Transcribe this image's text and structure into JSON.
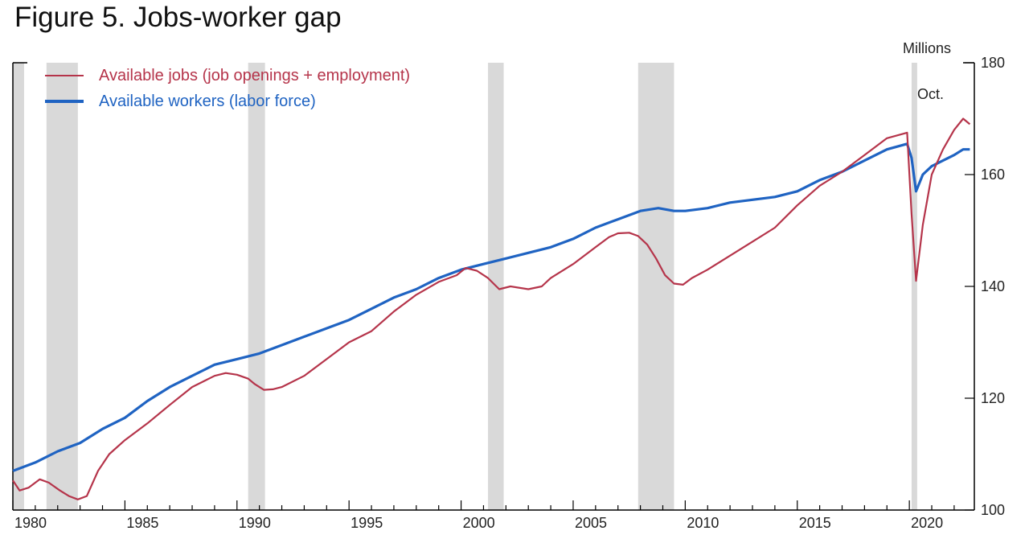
{
  "chart_data": {
    "type": "line",
    "title": "Figure 5. Jobs-worker gap",
    "ylabel": "Millions",
    "annotation": "Oct.",
    "xlim": [
      1980,
      2022.9
    ],
    "ylim": [
      100,
      180
    ],
    "x_ticks": [
      1980,
      1985,
      1990,
      1995,
      2000,
      2005,
      2010,
      2015,
      2020
    ],
    "y_ticks": [
      100,
      120,
      140,
      160,
      180
    ],
    "y_axis_side": "right",
    "grid": false,
    "legend_position": "top-left",
    "recessions": [
      [
        1980.0,
        1980.5
      ],
      [
        1981.5,
        1982.9
      ],
      [
        1990.5,
        1991.25
      ],
      [
        2001.2,
        2001.9
      ],
      [
        2007.9,
        2009.5
      ],
      [
        2020.1,
        2020.35
      ]
    ],
    "series": [
      {
        "name": "Available jobs (job openings + employment)",
        "color": "#b5344a",
        "x": [
          1980.0,
          1980.3,
          1980.7,
          1981.2,
          1981.6,
          1982.1,
          1982.5,
          1982.9,
          1983.3,
          1983.8,
          1984.3,
          1985.0,
          1986.0,
          1987.0,
          1988.0,
          1989.0,
          1989.5,
          1990.0,
          1990.5,
          1990.8,
          1991.2,
          1991.6,
          1992.0,
          1993.0,
          1994.0,
          1995.0,
          1996.0,
          1997.0,
          1998.0,
          1999.0,
          1999.8,
          2000.2,
          2000.7,
          2001.2,
          2001.7,
          2002.2,
          2003.0,
          2003.6,
          2004.0,
          2005.0,
          2006.0,
          2006.6,
          2007.0,
          2007.5,
          2007.9,
          2008.3,
          2008.7,
          2009.1,
          2009.5,
          2009.9,
          2010.3,
          2011.0,
          2012.0,
          2013.0,
          2014.0,
          2015.0,
          2016.0,
          2017.0,
          2018.0,
          2019.0,
          2019.9,
          2020.1,
          2020.3,
          2020.6,
          2021.0,
          2021.5,
          2022.0,
          2022.4,
          2022.7
        ],
        "values": [
          105.3,
          103.5,
          104.0,
          105.5,
          104.9,
          103.5,
          102.5,
          101.9,
          102.5,
          107.0,
          110.0,
          112.5,
          115.5,
          118.8,
          122.0,
          124.0,
          124.5,
          124.2,
          123.5,
          122.5,
          121.5,
          121.6,
          122.0,
          124.0,
          127.0,
          130.0,
          132.0,
          135.5,
          138.5,
          140.8,
          142.0,
          143.3,
          142.8,
          141.5,
          139.5,
          140.0,
          139.5,
          140.0,
          141.5,
          144.0,
          147.0,
          148.8,
          149.5,
          149.6,
          149.0,
          147.5,
          145.0,
          142.0,
          140.5,
          140.3,
          141.5,
          143.0,
          145.5,
          148.0,
          150.5,
          154.5,
          158.0,
          160.5,
          163.5,
          166.5,
          167.5,
          153.0,
          141.0,
          151.0,
          160.0,
          164.5,
          168.0,
          170.0,
          169.0
        ]
      },
      {
        "name": "Available workers (labor force)",
        "color": "#1f63c2",
        "x": [
          1980.0,
          1981.0,
          1982.0,
          1983.0,
          1984.0,
          1985.0,
          1986.0,
          1987.0,
          1988.0,
          1989.0,
          1990.0,
          1991.0,
          1992.0,
          1993.0,
          1994.0,
          1995.0,
          1996.0,
          1997.0,
          1998.0,
          1999.0,
          2000.0,
          2001.0,
          2002.0,
          2003.0,
          2004.0,
          2005.0,
          2006.0,
          2007.0,
          2008.0,
          2008.8,
          2009.5,
          2010.0,
          2011.0,
          2012.0,
          2013.0,
          2014.0,
          2015.0,
          2016.0,
          2017.0,
          2018.0,
          2019.0,
          2019.9,
          2020.1,
          2020.3,
          2020.6,
          2021.0,
          2021.5,
          2022.0,
          2022.4,
          2022.7
        ],
        "values": [
          107.0,
          108.5,
          110.5,
          112.0,
          114.5,
          116.5,
          119.5,
          122.0,
          124.0,
          126.0,
          127.0,
          128.0,
          129.5,
          131.0,
          132.5,
          134.0,
          136.0,
          138.0,
          139.5,
          141.5,
          143.0,
          144.0,
          145.0,
          146.0,
          147.0,
          148.5,
          150.5,
          152.0,
          153.5,
          154.0,
          153.5,
          153.5,
          154.0,
          155.0,
          155.5,
          156.0,
          157.0,
          159.0,
          160.5,
          162.5,
          164.5,
          165.5,
          163.0,
          157.0,
          160.0,
          161.5,
          162.5,
          163.5,
          164.5,
          164.5
        ]
      }
    ]
  }
}
